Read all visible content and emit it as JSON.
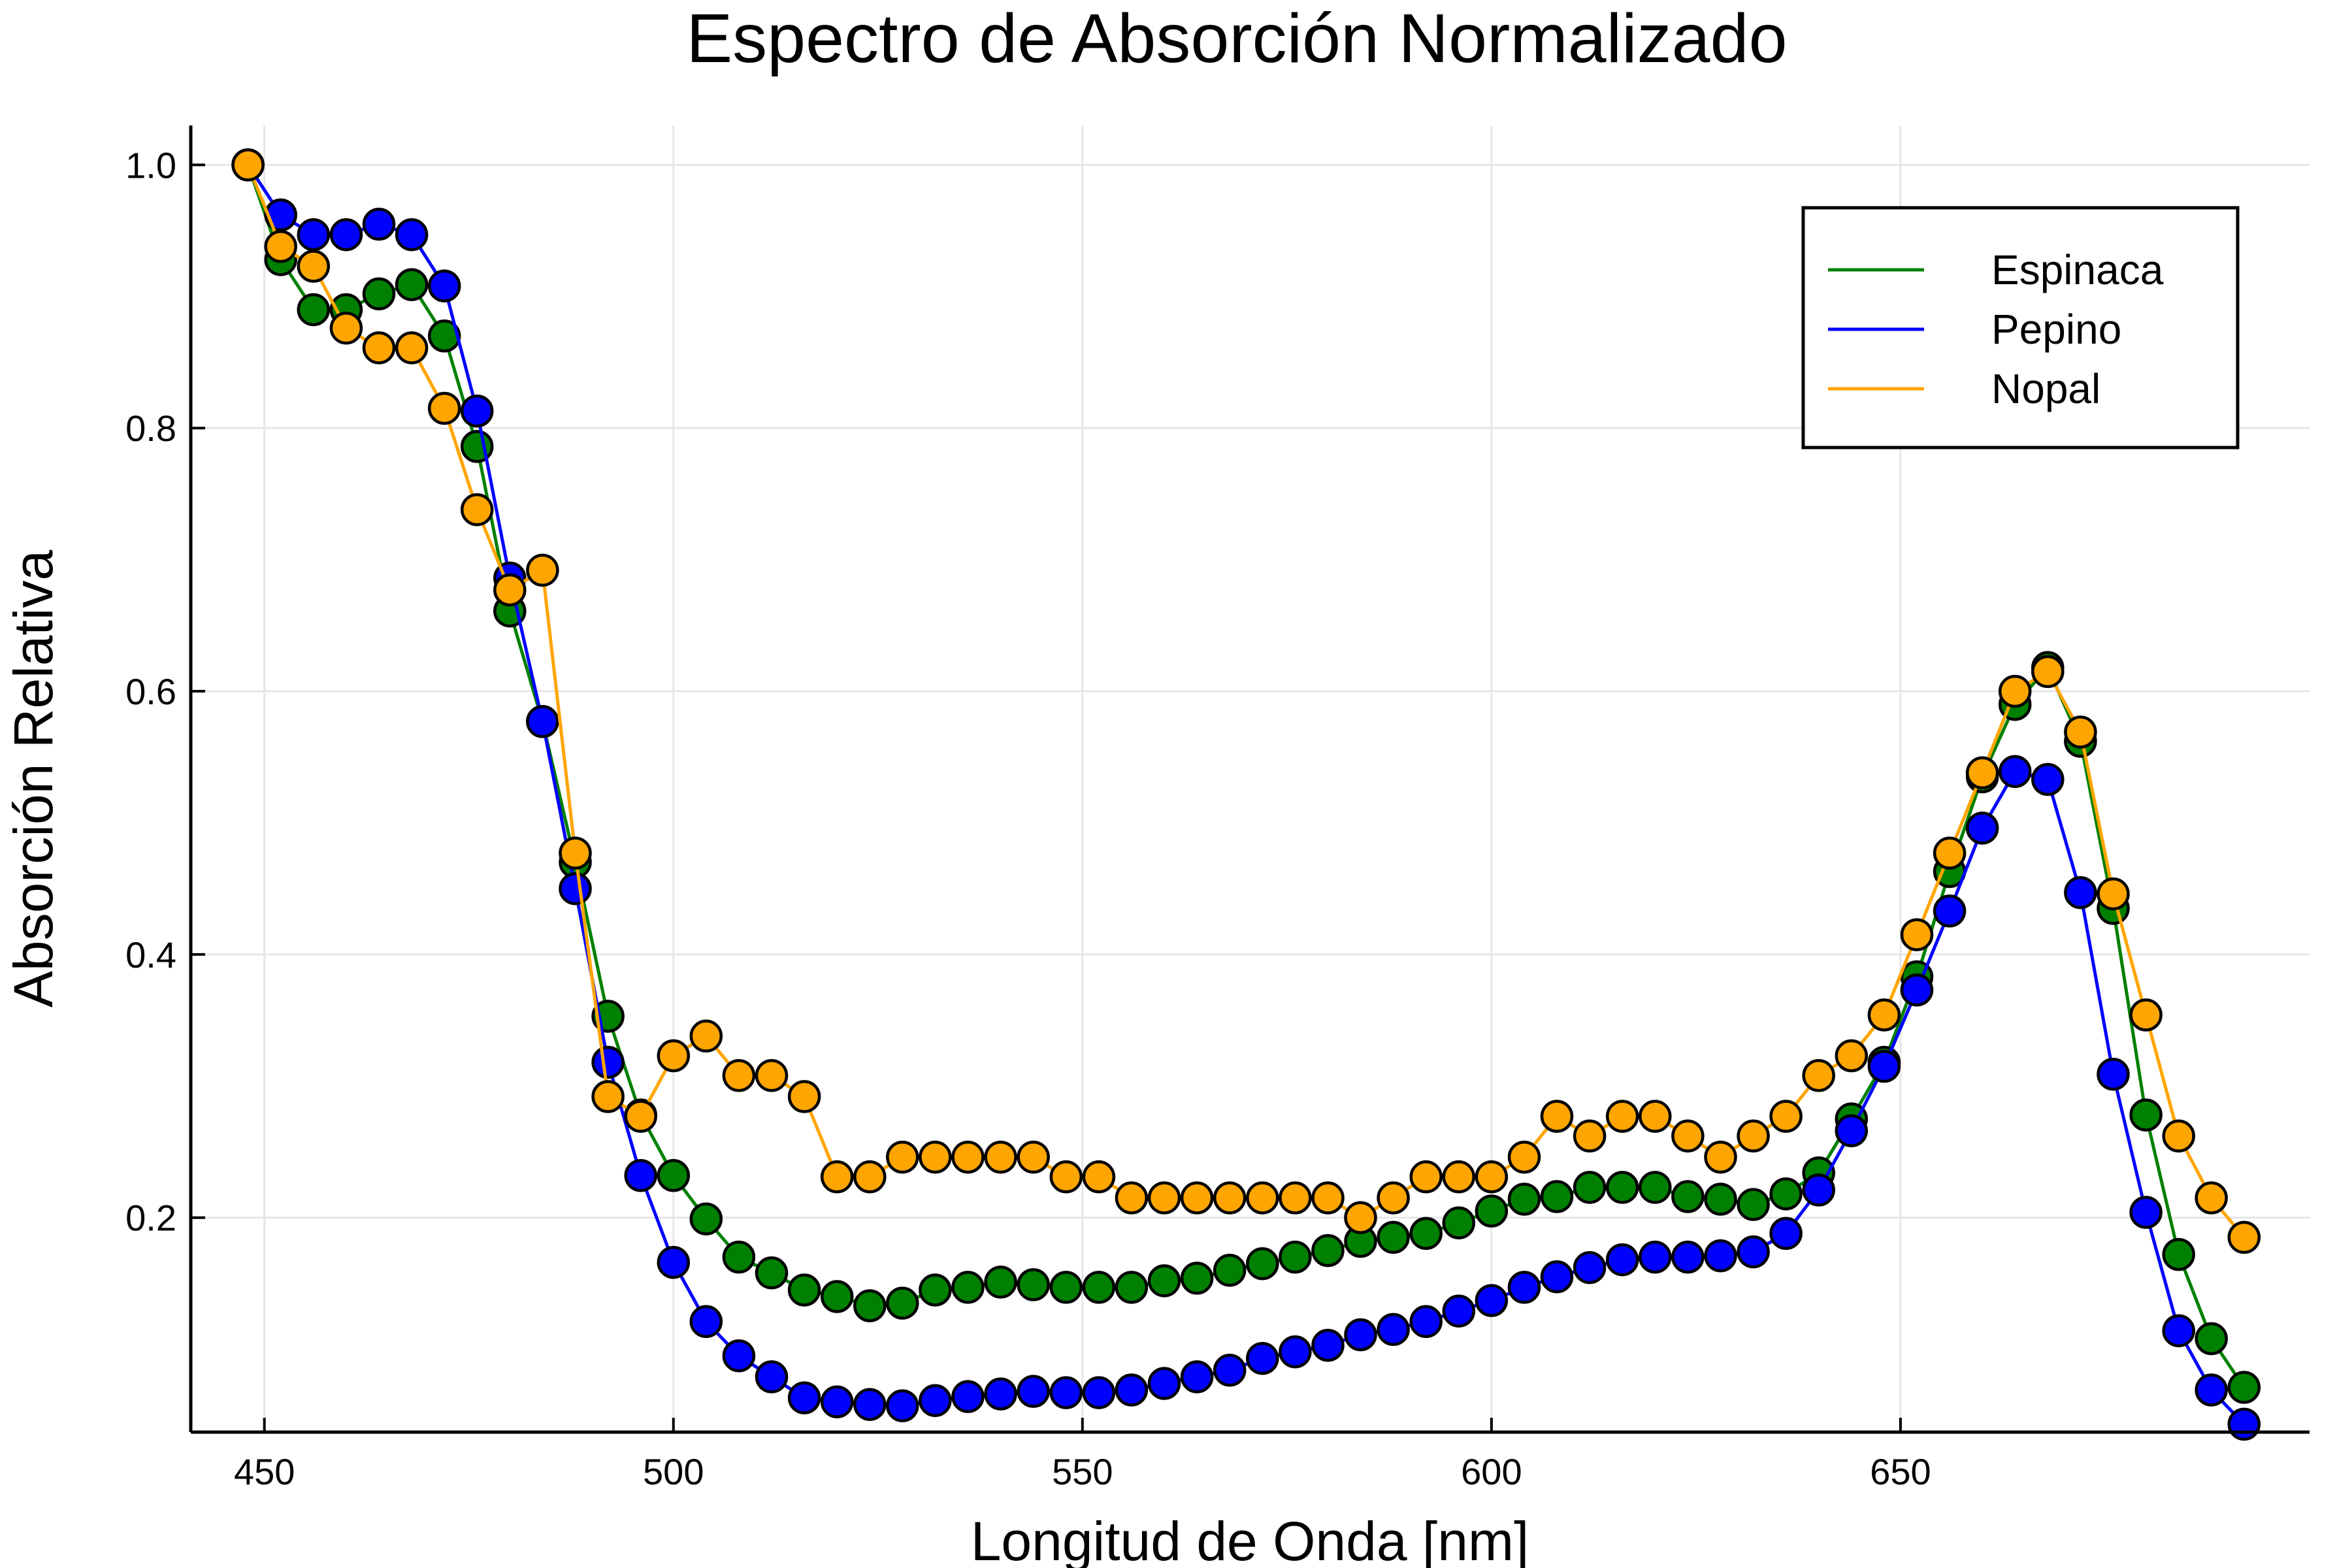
{
  "chart_data": {
    "type": "line",
    "title": "Espectro de Absorción Normalizado",
    "xlabel": "Longitud de Onda [nm]",
    "ylabel": "Absorción Relativa",
    "xlim": [
      441,
      700
    ],
    "ylim": [
      0.037,
      1.03
    ],
    "xticks": [
      450,
      500,
      550,
      600,
      650
    ],
    "xtick_labels": [
      "450",
      "500",
      "550",
      "600",
      "650"
    ],
    "yticks": [
      0.2,
      0.4,
      0.6,
      0.8,
      1.0
    ],
    "ytick_labels": [
      "0.2",
      "0.4",
      "0.6",
      "0.8",
      "1.0"
    ],
    "grid": true,
    "legend_position": "top-right",
    "markers": true,
    "x": [
      448,
      452,
      456,
      460,
      464,
      468,
      472,
      476,
      480,
      484,
      488,
      492,
      496,
      500,
      504,
      508,
      512,
      516,
      520,
      524,
      528,
      532,
      536,
      540,
      544,
      548,
      552,
      556,
      560,
      564,
      568,
      572,
      576,
      580,
      584,
      588,
      592,
      596,
      600,
      604,
      608,
      612,
      616,
      620,
      624,
      628,
      632,
      636,
      640,
      644,
      648,
      652,
      656,
      660,
      664,
      668,
      672,
      676,
      680,
      684,
      688,
      692
    ],
    "series": [
      {
        "name": "Espinaca",
        "color": "#008000",
        "values": [
          1.0,
          0.928,
          0.89,
          0.89,
          0.902,
          0.909,
          0.87,
          0.786,
          0.661,
          0.577,
          0.47,
          0.353,
          0.278,
          0.232,
          0.199,
          0.17,
          0.158,
          0.145,
          0.14,
          0.133,
          0.135,
          0.145,
          0.147,
          0.151,
          0.149,
          0.147,
          0.147,
          0.147,
          0.152,
          0.154,
          0.16,
          0.165,
          0.17,
          0.175,
          0.182,
          0.185,
          0.188,
          0.196,
          0.205,
          0.214,
          0.216,
          0.223,
          0.223,
          0.223,
          0.216,
          0.214,
          0.21,
          0.218,
          0.234,
          0.275,
          0.318,
          0.383,
          0.463,
          0.535,
          0.59,
          0.618,
          0.562,
          0.435,
          0.278,
          0.172,
          0.108,
          0.071
        ]
      },
      {
        "name": "Pepino",
        "color": "#0000ff",
        "values": [
          1.0,
          0.962,
          0.947,
          0.947,
          0.955,
          0.947,
          0.908,
          0.813,
          0.686,
          0.577,
          0.45,
          0.318,
          0.232,
          0.166,
          0.121,
          0.095,
          0.079,
          0.063,
          0.06,
          0.058,
          0.057,
          0.061,
          0.064,
          0.066,
          0.068,
          0.067,
          0.067,
          0.069,
          0.074,
          0.079,
          0.084,
          0.093,
          0.098,
          0.103,
          0.111,
          0.115,
          0.121,
          0.129,
          0.137,
          0.147,
          0.155,
          0.162,
          0.168,
          0.17,
          0.17,
          0.171,
          0.174,
          0.188,
          0.221,
          0.266,
          0.315,
          0.373,
          0.433,
          0.496,
          0.539,
          0.533,
          0.447,
          0.309,
          0.204,
          0.114,
          0.069,
          0.043
        ]
      },
      {
        "name": "Nopal",
        "color": "#ffa500",
        "values": [
          1.0,
          0.938,
          0.923,
          0.876,
          0.861,
          0.861,
          0.815,
          0.738,
          0.677,
          0.692,
          0.477,
          0.292,
          0.277,
          0.323,
          0.338,
          0.308,
          0.308,
          0.292,
          0.231,
          0.231,
          0.246,
          0.246,
          0.246,
          0.246,
          0.246,
          0.231,
          0.231,
          0.215,
          0.215,
          0.215,
          0.215,
          0.215,
          0.215,
          0.215,
          0.2,
          0.215,
          0.231,
          0.231,
          0.231,
          0.246,
          0.277,
          0.262,
          0.277,
          0.277,
          0.262,
          0.246,
          0.262,
          0.277,
          0.308,
          0.323,
          0.354,
          0.415,
          0.477,
          0.538,
          0.6,
          0.615,
          0.569,
          0.446,
          0.354,
          0.262,
          0.215,
          0.185
        ]
      }
    ]
  }
}
